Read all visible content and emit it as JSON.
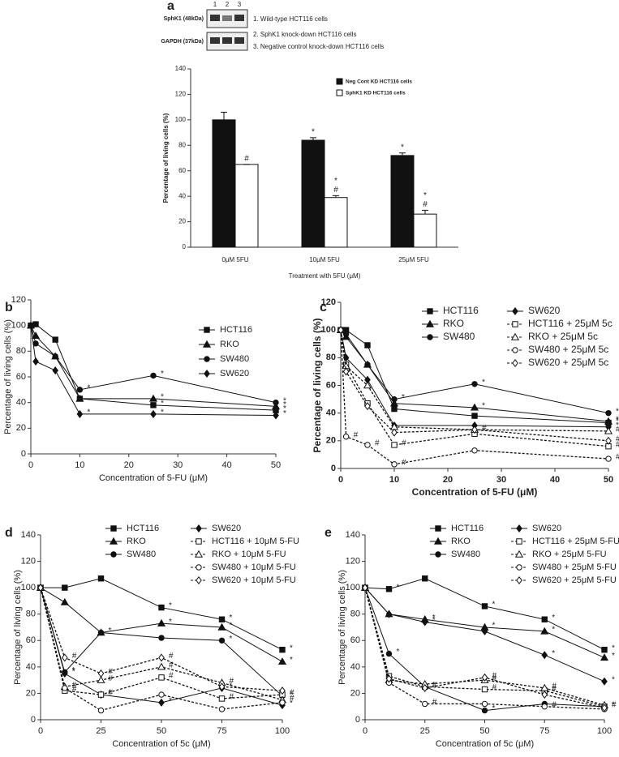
{
  "blot": {
    "lanes": [
      "1",
      "2",
      "3"
    ],
    "rows": [
      "SphK1 (48kDa)",
      "GAPDH (37kDa)"
    ],
    "legend": [
      "1. Wild-type HCT116 cells",
      "2. SphK1 knock-down HCT116 cells",
      "3. Negative control knock-down HCT116 cells"
    ]
  },
  "chart_data": [
    {
      "type": "bar",
      "panel_label": "a",
      "xlabel": "Treatment with 5FU (μM)",
      "ylabel": "Percentage of living cells (%)",
      "categories": [
        "0μM 5FU",
        "10μM 5FU",
        "25μM 5FU"
      ],
      "ylim": [
        0,
        140
      ],
      "yticks": [
        0,
        20,
        40,
        60,
        80,
        100,
        120,
        140
      ],
      "series": [
        {
          "name": "Neg Cont KD HCT116 cells",
          "color": "#111111",
          "values": [
            100,
            84,
            72
          ],
          "errors": [
            6,
            2,
            2
          ],
          "annotations": [
            null,
            "*",
            "*"
          ]
        },
        {
          "name": "SphK1 KD HCT116 cells",
          "color": "#ffffff",
          "values": [
            65,
            39,
            26
          ],
          "errors": [
            0,
            1.5,
            3
          ],
          "annotations": [
            "#",
            "#",
            "#"
          ],
          "star_annotations": [
            null,
            "*",
            "*"
          ]
        }
      ]
    },
    {
      "type": "line",
      "panel_label": "b",
      "xlabel": "Concentration of 5-FU (μM)",
      "ylabel": "Percentage of living cells (%)",
      "x": [
        0,
        1,
        5,
        10,
        25,
        50
      ],
      "xlim": [
        0,
        50
      ],
      "xticks": [
        0,
        10,
        20,
        30,
        40,
        50
      ],
      "ylim": [
        0,
        120
      ],
      "yticks": [
        0,
        20,
        40,
        60,
        80,
        100,
        120
      ],
      "series": [
        {
          "name": "HCT116",
          "color": "#111111",
          "marker": "square",
          "dashed": false,
          "values": [
            100,
            101,
            89,
            43,
            38,
            34
          ],
          "annotations": [
            null,
            null,
            null,
            null,
            "*",
            "*"
          ]
        },
        {
          "name": "RKO",
          "color": "#111111",
          "marker": "triangle",
          "dashed": false,
          "values": [
            100,
            92,
            76,
            43,
            43,
            37
          ],
          "annotations": [
            null,
            null,
            null,
            null,
            "*",
            "*"
          ]
        },
        {
          "name": "SW480",
          "color": "#111111",
          "marker": "circle",
          "dashed": false,
          "values": [
            100,
            86,
            76,
            50,
            61,
            40
          ],
          "annotations": [
            null,
            null,
            null,
            "*",
            "*",
            "*"
          ]
        },
        {
          "name": "SW620",
          "color": "#111111",
          "marker": "diamond",
          "dashed": false,
          "values": [
            100,
            72,
            65,
            31,
            31,
            30
          ],
          "annotations": [
            null,
            null,
            null,
            "*",
            "*",
            "*"
          ]
        }
      ]
    },
    {
      "type": "line",
      "panel_label": "c",
      "xlabel": "Concentration of 5-FU (μM)",
      "ylabel": "Percentage of living cells (%)",
      "x": [
        0,
        1,
        5,
        10,
        25,
        50
      ],
      "xlim": [
        0,
        50
      ],
      "xticks": [
        0,
        10,
        20,
        30,
        40,
        50
      ],
      "ylim": [
        0,
        120
      ],
      "yticks": [
        0,
        20,
        40,
        60,
        80,
        100,
        120
      ],
      "series": [
        {
          "name": "HCT116",
          "color": "#111111",
          "marker": "square",
          "dashed": false,
          "values": [
            100,
            100,
            89,
            43,
            38,
            33
          ],
          "annotations": [
            null,
            null,
            null,
            null,
            null,
            "*"
          ]
        },
        {
          "name": "RKO",
          "color": "#111111",
          "marker": "triangle",
          "dashed": false,
          "values": [
            100,
            95,
            75,
            47,
            44,
            34
          ],
          "annotations": [
            null,
            null,
            null,
            null,
            "*",
            "*"
          ]
        },
        {
          "name": "SW480",
          "color": "#111111",
          "marker": "circle",
          "dashed": false,
          "values": [
            100,
            97,
            75,
            50,
            61,
            40
          ],
          "annotations": [
            null,
            null,
            null,
            "*",
            "*",
            "*"
          ]
        },
        {
          "name": "SW620",
          "color": "#111111",
          "marker": "diamond",
          "dashed": false,
          "values": [
            100,
            80,
            64,
            31,
            31,
            30
          ],
          "annotations": [
            null,
            null,
            null,
            null,
            null,
            "*"
          ]
        },
        {
          "name": "HCT116 + 25μM 5c",
          "color": "#111111",
          "marker": "square",
          "dashed": true,
          "values": [
            100,
            75,
            47,
            17,
            25,
            16
          ],
          "annotations": [
            null,
            null,
            null,
            "#",
            null,
            "#"
          ]
        },
        {
          "name": "RKO + 25μM 5c",
          "color": "#111111",
          "marker": "triangle",
          "dashed": true,
          "values": [
            100,
            74,
            60,
            30,
            28,
            27
          ],
          "annotations": [
            null,
            null,
            null,
            null,
            null,
            "#"
          ]
        },
        {
          "name": "SW480 + 25μM 5c",
          "color": "#111111",
          "marker": "circle",
          "dashed": true,
          "values": [
            100,
            23,
            17,
            3,
            13,
            7
          ],
          "annotations": [
            null,
            "#",
            "#",
            "#",
            null,
            "#"
          ]
        },
        {
          "name": "SW620 + 25μM 5c",
          "color": "#111111",
          "marker": "diamond",
          "dashed": true,
          "values": [
            100,
            70,
            45,
            26,
            28,
            20
          ],
          "annotations": [
            null,
            null,
            null,
            null,
            "#",
            "#"
          ]
        }
      ]
    },
    {
      "type": "line",
      "panel_label": "d",
      "xlabel": "Concentration of 5c (μM)",
      "ylabel": "Percentage of living cells (%)",
      "x": [
        0,
        10,
        25,
        50,
        75,
        100
      ],
      "xlim": [
        0,
        100
      ],
      "xticks": [
        0,
        25,
        50,
        75,
        100
      ],
      "ylim": [
        0,
        140
      ],
      "yticks": [
        0,
        20,
        40,
        60,
        80,
        100,
        120,
        140
      ],
      "series": [
        {
          "name": "HCT116",
          "color": "#111111",
          "marker": "square",
          "dashed": false,
          "values": [
            100,
            100,
            107,
            85,
            76,
            53
          ],
          "annotations": [
            null,
            null,
            null,
            "*",
            "*",
            "*"
          ]
        },
        {
          "name": "RKO",
          "color": "#111111",
          "marker": "triangle",
          "dashed": false,
          "values": [
            100,
            89,
            66,
            73,
            70,
            44
          ],
          "annotations": [
            null,
            null,
            "*",
            "*",
            "*",
            "*"
          ]
        },
        {
          "name": "SW480",
          "color": "#111111",
          "marker": "circle",
          "dashed": false,
          "values": [
            100,
            36,
            66,
            62,
            60,
            18
          ],
          "annotations": [
            null,
            "*",
            null,
            null,
            "*",
            "*"
          ]
        },
        {
          "name": "SW620",
          "color": "#111111",
          "marker": "diamond",
          "dashed": false,
          "values": [
            100,
            35,
            19,
            13,
            24,
            11
          ],
          "annotations": [
            null,
            "*",
            "*",
            "*",
            "*",
            "*"
          ]
        },
        {
          "name": "HCT116 + 10μM 5-FU",
          "color": "#111111",
          "marker": "square",
          "dashed": true,
          "values": [
            100,
            22,
            19,
            32,
            16,
            19
          ],
          "annotations": [
            null,
            "#",
            "#",
            "#",
            "#",
            "#"
          ]
        },
        {
          "name": "RKO + 10μM 5-FU",
          "color": "#111111",
          "marker": "triangle",
          "dashed": true,
          "values": [
            100,
            25,
            30,
            40,
            28,
            15
          ],
          "annotations": [
            null,
            "#",
            "#",
            "#",
            "#",
            "#"
          ]
        },
        {
          "name": "SW480 + 10μM 5-FU",
          "color": "#111111",
          "marker": "circle",
          "dashed": true,
          "values": [
            100,
            24,
            7,
            19,
            8,
            13
          ],
          "annotations": [
            null,
            null,
            null,
            null,
            null,
            null
          ]
        },
        {
          "name": "SW620 + 10μM 5-FU",
          "color": "#111111",
          "marker": "diamond",
          "dashed": true,
          "values": [
            100,
            47,
            35,
            47,
            25,
            22
          ],
          "annotations": [
            null,
            "#",
            "#",
            "#",
            null,
            null
          ]
        }
      ]
    },
    {
      "type": "line",
      "panel_label": "e",
      "xlabel": "Concentration of 5c (μM)",
      "ylabel": "Percentage of living cells (%)",
      "x": [
        0,
        10,
        25,
        50,
        75,
        100
      ],
      "xlim": [
        0,
        100
      ],
      "xticks": [
        0,
        25,
        50,
        75,
        100
      ],
      "ylim": [
        0,
        140
      ],
      "yticks": [
        0,
        20,
        40,
        60,
        80,
        100,
        120,
        140
      ],
      "series": [
        {
          "name": "HCT116",
          "color": "#111111",
          "marker": "square",
          "dashed": false,
          "values": [
            100,
            99,
            107,
            86,
            76,
            53
          ],
          "annotations": [
            null,
            "*",
            null,
            "*",
            "*",
            "*"
          ]
        },
        {
          "name": "RKO",
          "color": "#111111",
          "marker": "triangle",
          "dashed": false,
          "values": [
            100,
            80,
            76,
            70,
            67,
            47
          ],
          "annotations": [
            null,
            null,
            "*",
            "*",
            "*",
            "*"
          ]
        },
        {
          "name": "SW480",
          "color": "#111111",
          "marker": "circle",
          "dashed": false,
          "values": [
            100,
            50,
            25,
            7,
            12,
            10
          ],
          "annotations": [
            null,
            "*",
            "*",
            "*",
            null,
            "*"
          ]
        },
        {
          "name": "SW620",
          "color": "#111111",
          "marker": "diamond",
          "dashed": false,
          "values": [
            100,
            80,
            74,
            67,
            49,
            29
          ],
          "annotations": [
            null,
            null,
            "*",
            null,
            "*",
            "*"
          ]
        },
        {
          "name": "HCT116 + 25μM 5-FU",
          "color": "#111111",
          "marker": "square",
          "dashed": true,
          "values": [
            100,
            33,
            25,
            23,
            22,
            10
          ],
          "annotations": [
            null,
            null,
            "#",
            "#",
            "#",
            "#"
          ]
        },
        {
          "name": "RKO + 25μM 5-FU",
          "color": "#111111",
          "marker": "triangle",
          "dashed": true,
          "values": [
            100,
            30,
            27,
            30,
            24,
            11
          ],
          "annotations": [
            null,
            null,
            null,
            "#",
            "#",
            null
          ]
        },
        {
          "name": "SW480 + 25μM 5-FU",
          "color": "#111111",
          "marker": "circle",
          "dashed": true,
          "values": [
            100,
            28,
            12,
            12,
            10,
            8
          ],
          "annotations": [
            null,
            null,
            "#",
            null,
            "#",
            null
          ]
        },
        {
          "name": "SW620 + 25μM 5-FU",
          "color": "#111111",
          "marker": "diamond",
          "dashed": true,
          "values": [
            100,
            31,
            24,
            32,
            19,
            9
          ],
          "annotations": [
            null,
            null,
            null,
            "#",
            null,
            null
          ]
        }
      ]
    }
  ]
}
